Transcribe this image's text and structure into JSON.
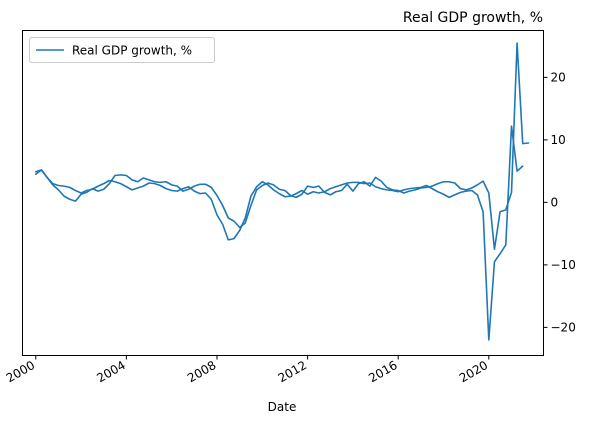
{
  "chart_data": {
    "type": "line",
    "title": "Real GDP growth, %",
    "xlabel": "Date",
    "ylabel": "",
    "ylim": [
      -24.5,
      27.5
    ],
    "y_ticks": [
      20,
      10,
      0,
      -10,
      -20
    ],
    "y_axis_side": "right",
    "x_ticks": [
      "2000",
      "2004",
      "2008",
      "2012",
      "2016",
      "2020"
    ],
    "x_tick_rotation": 30,
    "xlim": [
      "1999-06-01",
      "2022-06-01"
    ],
    "grid": false,
    "legend": {
      "placement": "top-left"
    },
    "series": [
      {
        "name": "Real GDP growth, %",
        "color": "#1f77b4",
        "points": [
          [
            "2000-01-01",
            4.5
          ],
          [
            "2000-04-01",
            5.2
          ],
          [
            "2000-07-01",
            4.0
          ],
          [
            "2000-10-01",
            2.8
          ],
          [
            "2001-01-01",
            2.0
          ],
          [
            "2001-04-01",
            1.0
          ],
          [
            "2001-07-01",
            0.5
          ],
          [
            "2001-10-01",
            0.2
          ],
          [
            "2002-01-01",
            1.3
          ],
          [
            "2002-04-01",
            1.6
          ],
          [
            "2002-07-01",
            2.2
          ],
          [
            "2002-10-01",
            1.8
          ],
          [
            "2003-01-01",
            2.1
          ],
          [
            "2003-04-01",
            3.0
          ],
          [
            "2003-07-01",
            4.3
          ],
          [
            "2003-10-01",
            4.4
          ],
          [
            "2004-01-01",
            4.3
          ],
          [
            "2004-04-01",
            3.6
          ],
          [
            "2004-07-01",
            3.3
          ],
          [
            "2004-10-01",
            3.9
          ],
          [
            "2005-01-01",
            3.6
          ],
          [
            "2005-04-01",
            3.3
          ],
          [
            "2005-07-01",
            3.2
          ],
          [
            "2005-10-01",
            3.3
          ],
          [
            "2006-01-01",
            2.8
          ],
          [
            "2006-04-01",
            2.6
          ],
          [
            "2006-07-01",
            1.8
          ],
          [
            "2006-10-01",
            2.1
          ],
          [
            "2007-01-01",
            2.6
          ],
          [
            "2007-04-01",
            2.9
          ],
          [
            "2007-07-01",
            2.9
          ],
          [
            "2007-10-01",
            2.4
          ],
          [
            "2008-01-01",
            1.1
          ],
          [
            "2008-04-01",
            -0.5
          ],
          [
            "2008-07-01",
            -2.5
          ],
          [
            "2008-10-01",
            -3.0
          ],
          [
            "2009-01-01",
            -4.0
          ],
          [
            "2009-04-01",
            -3.3
          ],
          [
            "2009-07-01",
            -0.5
          ],
          [
            "2009-10-01",
            2.0
          ],
          [
            "2010-01-01",
            2.7
          ],
          [
            "2010-04-01",
            3.1
          ],
          [
            "2010-07-01",
            2.8
          ],
          [
            "2010-10-01",
            2.1
          ],
          [
            "2011-01-01",
            1.9
          ],
          [
            "2011-04-01",
            1.1
          ],
          [
            "2011-07-01",
            0.8
          ],
          [
            "2011-10-01",
            1.3
          ],
          [
            "2012-01-01",
            2.6
          ],
          [
            "2012-04-01",
            2.4
          ],
          [
            "2012-07-01",
            2.6
          ],
          [
            "2012-10-01",
            1.6
          ],
          [
            "2013-01-01",
            1.2
          ],
          [
            "2013-04-01",
            1.7
          ],
          [
            "2013-07-01",
            1.9
          ],
          [
            "2013-10-01",
            2.9
          ],
          [
            "2014-01-01",
            1.8
          ],
          [
            "2014-04-01",
            3.0
          ],
          [
            "2014-07-01",
            3.3
          ],
          [
            "2014-10-01",
            2.6
          ],
          [
            "2015-01-01",
            4.0
          ],
          [
            "2015-04-01",
            3.4
          ],
          [
            "2015-07-01",
            2.4
          ],
          [
            "2015-10-01",
            2.0
          ],
          [
            "2016-01-01",
            1.9
          ],
          [
            "2016-04-01",
            1.5
          ],
          [
            "2016-07-01",
            1.8
          ],
          [
            "2016-10-01",
            2.0
          ],
          [
            "2017-01-01",
            2.3
          ],
          [
            "2017-04-01",
            2.4
          ],
          [
            "2017-07-01",
            2.6
          ],
          [
            "2017-10-01",
            3.0
          ],
          [
            "2018-01-01",
            3.3
          ],
          [
            "2018-04-01",
            3.3
          ],
          [
            "2018-07-01",
            3.1
          ],
          [
            "2018-10-01",
            2.2
          ],
          [
            "2019-01-01",
            2.0
          ],
          [
            "2019-04-01",
            2.3
          ],
          [
            "2019-07-01",
            2.8
          ],
          [
            "2019-10-01",
            3.4
          ],
          [
            "2020-01-01",
            1.5
          ],
          [
            "2020-04-01",
            -7.5
          ],
          [
            "2020-07-01",
            -1.5
          ],
          [
            "2020-10-01",
            -1.2
          ],
          [
            "2021-01-01",
            1.6
          ],
          [
            "2021-04-01",
            25.5
          ],
          [
            "2021-07-01",
            9.4
          ],
          [
            "2021-10-01",
            9.5
          ]
        ]
      },
      {
        "name": "",
        "color": "#1f77b4",
        "points": [
          [
            "2000-01-01",
            4.9
          ],
          [
            "2000-04-01",
            5.2
          ],
          [
            "2000-07-01",
            4.0
          ],
          [
            "2000-10-01",
            3.0
          ],
          [
            "2001-01-01",
            2.7
          ],
          [
            "2001-04-01",
            2.6
          ],
          [
            "2001-07-01",
            2.4
          ],
          [
            "2001-10-01",
            1.9
          ],
          [
            "2002-01-01",
            1.5
          ],
          [
            "2002-04-01",
            1.9
          ],
          [
            "2002-07-01",
            2.1
          ],
          [
            "2002-10-01",
            2.6
          ],
          [
            "2003-01-01",
            3.0
          ],
          [
            "2003-04-01",
            3.5
          ],
          [
            "2003-07-01",
            3.3
          ],
          [
            "2003-10-01",
            3.0
          ],
          [
            "2004-01-01",
            2.5
          ],
          [
            "2004-04-01",
            2.0
          ],
          [
            "2004-07-01",
            2.3
          ],
          [
            "2004-10-01",
            2.6
          ],
          [
            "2005-01-01",
            3.1
          ],
          [
            "2005-04-01",
            3.0
          ],
          [
            "2005-07-01",
            2.7
          ],
          [
            "2005-10-01",
            2.2
          ],
          [
            "2006-01-01",
            1.9
          ],
          [
            "2006-04-01",
            1.8
          ],
          [
            "2006-07-01",
            2.2
          ],
          [
            "2006-10-01",
            2.5
          ],
          [
            "2007-01-01",
            1.8
          ],
          [
            "2007-04-01",
            1.4
          ],
          [
            "2007-07-01",
            1.5
          ],
          [
            "2007-10-01",
            0.5
          ],
          [
            "2008-01-01",
            -2.0
          ],
          [
            "2008-04-01",
            -3.5
          ],
          [
            "2008-07-01",
            -6.0
          ],
          [
            "2008-10-01",
            -5.8
          ],
          [
            "2009-01-01",
            -4.5
          ],
          [
            "2009-04-01",
            -2.5
          ],
          [
            "2009-07-01",
            1.0
          ],
          [
            "2009-10-01",
            2.5
          ],
          [
            "2010-01-01",
            3.3
          ],
          [
            "2010-04-01",
            2.8
          ],
          [
            "2010-07-01",
            2.0
          ],
          [
            "2010-10-01",
            1.4
          ],
          [
            "2011-01-01",
            0.9
          ],
          [
            "2011-04-01",
            1.0
          ],
          [
            "2011-07-01",
            1.4
          ],
          [
            "2011-10-01",
            1.9
          ],
          [
            "2012-01-01",
            1.3
          ],
          [
            "2012-04-01",
            1.7
          ],
          [
            "2012-07-01",
            1.5
          ],
          [
            "2012-10-01",
            1.7
          ],
          [
            "2013-01-01",
            2.2
          ],
          [
            "2013-04-01",
            2.5
          ],
          [
            "2013-07-01",
            2.8
          ],
          [
            "2013-10-01",
            3.1
          ],
          [
            "2014-01-01",
            3.2
          ],
          [
            "2014-04-01",
            3.2
          ],
          [
            "2014-07-01",
            3.0
          ],
          [
            "2014-10-01",
            3.1
          ],
          [
            "2015-01-01",
            2.5
          ],
          [
            "2015-04-01",
            2.2
          ],
          [
            "2015-07-01",
            2.0
          ],
          [
            "2015-10-01",
            1.9
          ],
          [
            "2016-01-01",
            1.7
          ],
          [
            "2016-04-01",
            2.0
          ],
          [
            "2016-07-01",
            2.2
          ],
          [
            "2016-10-01",
            2.3
          ],
          [
            "2017-01-01",
            2.4
          ],
          [
            "2017-04-01",
            2.7
          ],
          [
            "2017-07-01",
            2.2
          ],
          [
            "2017-10-01",
            1.7
          ],
          [
            "2018-01-01",
            1.3
          ],
          [
            "2018-04-01",
            0.8
          ],
          [
            "2018-07-01",
            1.2
          ],
          [
            "2018-10-01",
            1.6
          ],
          [
            "2019-01-01",
            1.8
          ],
          [
            "2019-04-01",
            1.9
          ],
          [
            "2019-07-01",
            1.2
          ],
          [
            "2019-10-01",
            -1.5
          ],
          [
            "2020-01-01",
            -22.0
          ],
          [
            "2020-04-01",
            -9.5
          ],
          [
            "2020-07-01",
            -8.2
          ],
          [
            "2020-10-01",
            -6.8
          ],
          [
            "2021-01-01",
            12.2
          ],
          [
            "2021-04-01",
            5.0
          ],
          [
            "2021-07-01",
            5.8
          ]
        ]
      }
    ]
  }
}
